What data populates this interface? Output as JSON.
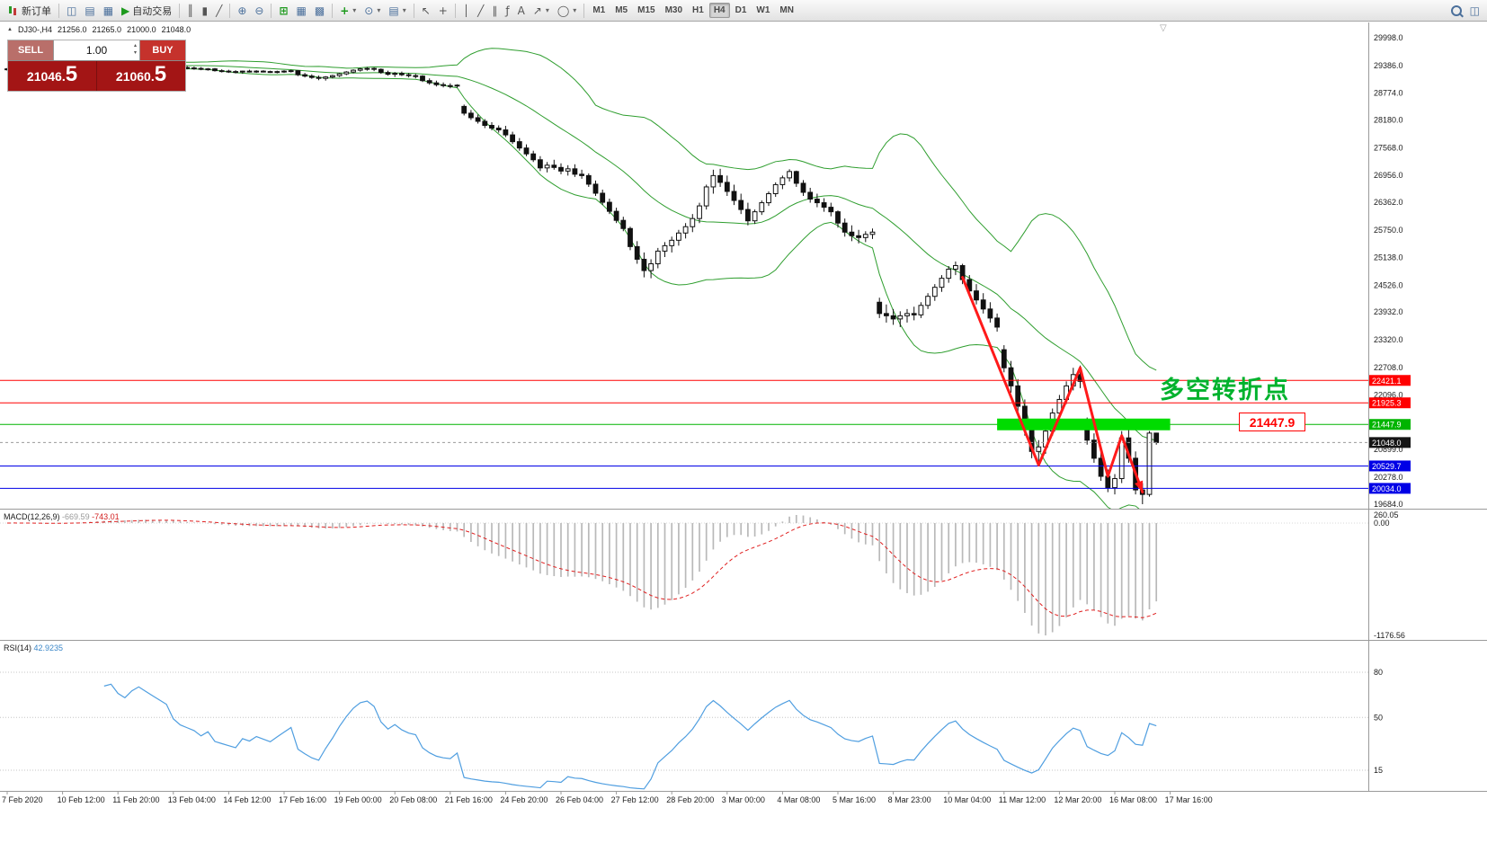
{
  "toolbar": {
    "new_order_label": "新订单",
    "autotrading_label": "自动交易",
    "timeframes": [
      "M1",
      "M5",
      "M15",
      "M30",
      "H1",
      "H4",
      "D1",
      "W1",
      "MN"
    ],
    "active_timeframe": "H4"
  },
  "icons": {
    "marker": "▲",
    "shift_marker": "▽",
    "chart_window": "◫",
    "market_watch": "▤",
    "metaeditor": "▦",
    "play": "▶",
    "chart_bars": "║",
    "chart_candles": "▮",
    "chart_line": "╱",
    "zoom_in": "⊕",
    "zoom_out": "⊖",
    "grid": "⊞",
    "tile_windows": "▦",
    "cascade_windows": "▩",
    "add_indicator": "+",
    "periods": "⊙",
    "templates": "▤",
    "cursor": "↖",
    "crosshair": "+",
    "vertical_line": "│",
    "trendline": "╱",
    "channel": "∥",
    "fibonacci": "ƒ",
    "text_tool": "A",
    "arrows_tool": "↗",
    "shapes_tool": "◯",
    "dropdown": "▾",
    "spin_up": "▴",
    "spin_down": "▾"
  },
  "trade": {
    "sell_label": "SELL",
    "buy_label": "BUY",
    "volume": "1.00",
    "sell_price": "21046.",
    "sell_pip": "5",
    "buy_price": "21060.",
    "buy_pip": "5"
  },
  "chart": {
    "symbol_period": "DJ30-,H4",
    "open": "21256.0",
    "high": "21265.0",
    "low": "21000.0",
    "close": "21048.0",
    "price_labels": [
      "29998.0",
      "29386.0",
      "28774.0",
      "28180.0",
      "27568.0",
      "26956.0",
      "26362.0",
      "25750.0",
      "25138.0",
      "24526.0",
      "23932.0",
      "23320.0",
      "22708.0",
      "22096.0",
      "21484.0",
      "20899.0",
      "20278.0",
      "19684.0"
    ],
    "time_labels": [
      "7 Feb 2020",
      "10 Feb 12:00",
      "11 Feb 20:00",
      "13 Feb 04:00",
      "14 Feb 12:00",
      "17 Feb 16:00",
      "19 Feb 00:00",
      "20 Feb 08:00",
      "21 Feb 16:00",
      "24 Feb 20:00",
      "26 Feb 04:00",
      "27 Feb 12:00",
      "28 Feb 20:00",
      "3 Mar 00:00",
      "4 Mar 08:00",
      "5 Mar 16:00",
      "8 Mar 23:00",
      "10 Mar 04:00",
      "11 Mar 12:00",
      "12 Mar 20:00",
      "16 Mar 08:00",
      "17 Mar 16:00"
    ],
    "levels": [
      {
        "label": "22421.1",
        "value": 22421.1,
        "color": "#ff0000"
      },
      {
        "label": "21925.3",
        "value": 21925.3,
        "color": "#ff0000"
      },
      {
        "label": "21447.9",
        "value": 21447.9,
        "color": "#00b400"
      },
      {
        "label": "20529.7",
        "value": 20529.7,
        "color": "#0000e6"
      },
      {
        "label": "20034.0",
        "value": 20034.0,
        "color": "#0000e6"
      }
    ],
    "current_price": {
      "label": "21048.0",
      "value": 21048.0
    }
  },
  "indicators": {
    "macd": {
      "name": "MACD(12,26,9)",
      "value_main": "-669.59",
      "value_signal": "-743.01",
      "fast": 12,
      "slow": 26,
      "signal": 9,
      "scale_labels": [
        "260.05",
        "0.00",
        "-1176.56"
      ]
    },
    "rsi": {
      "name": "RSI(14)",
      "value": "42.9235",
      "period": 14,
      "levels": [
        "80",
        "50",
        "15"
      ]
    }
  },
  "annotations": {
    "turning_point": {
      "text": "多空转折点",
      "color": "#00b22d"
    },
    "price_callout": {
      "text": "21447.9",
      "color": "#ff0000"
    },
    "zigzag": {
      "color": "#ff1a1a",
      "points": [
        [
          138,
          24700
        ],
        [
          149,
          20550
        ],
        [
          155,
          22700
        ],
        [
          159,
          20300
        ],
        [
          161,
          21200
        ],
        [
          164,
          19950
        ]
      ]
    },
    "support_zone": {
      "price": 21447.9,
      "from_bar": 143,
      "to_bar": 168,
      "color": "#00dc00"
    }
  },
  "chart_data": {
    "type": "candlestick",
    "symbol": "DJ30",
    "timeframe": "H4",
    "price_range": [
      19684.0,
      29998.0
    ],
    "bollinger": {
      "period": 20,
      "deviation": 2,
      "color": "#2f9e2f"
    },
    "candles": [
      [
        29300,
        29330,
        29270,
        29310
      ],
      [
        29310,
        29340,
        29290,
        29320
      ],
      [
        29320,
        29335,
        29280,
        29290
      ],
      [
        29290,
        29320,
        29260,
        29300
      ],
      [
        29300,
        29330,
        29270,
        29280
      ],
      [
        29280,
        29310,
        29250,
        29270
      ],
      [
        29270,
        29300,
        29240,
        29290
      ],
      [
        29290,
        29330,
        29270,
        29320
      ],
      [
        29320,
        29350,
        29300,
        29340
      ],
      [
        29340,
        29370,
        29310,
        29330
      ],
      [
        29330,
        29360,
        29300,
        29350
      ],
      [
        29350,
        29380,
        29320,
        29360
      ],
      [
        29360,
        29400,
        29340,
        29390
      ],
      [
        29390,
        29420,
        29360,
        29400
      ],
      [
        29400,
        29430,
        29380,
        29410
      ],
      [
        29410,
        29440,
        29390,
        29420
      ],
      [
        29420,
        29440,
        29380,
        29400
      ],
      [
        29400,
        29430,
        29370,
        29390
      ],
      [
        29390,
        29430,
        29370,
        29420
      ],
      [
        29420,
        29450,
        29400,
        29440
      ],
      [
        29440,
        29460,
        29410,
        29430
      ],
      [
        29430,
        29450,
        29400,
        29420
      ],
      [
        29420,
        29440,
        29390,
        29410
      ],
      [
        29410,
        29430,
        29380,
        29400
      ],
      [
        29400,
        29420,
        29340,
        29360
      ],
      [
        29360,
        29390,
        29320,
        29340
      ],
      [
        29340,
        29370,
        29300,
        29330
      ],
      [
        29330,
        29360,
        29290,
        29320
      ],
      [
        29320,
        29350,
        29280,
        29300
      ],
      [
        29300,
        29330,
        29270,
        29310
      ],
      [
        29310,
        29330,
        29250,
        29270
      ],
      [
        29270,
        29300,
        29230,
        29260
      ],
      [
        29260,
        29290,
        29220,
        29250
      ],
      [
        29250,
        29280,
        29210,
        29240
      ],
      [
        29240,
        29270,
        29200,
        29260
      ],
      [
        29260,
        29290,
        29230,
        29250
      ],
      [
        29250,
        29280,
        29220,
        29260
      ],
      [
        29260,
        29280,
        29230,
        29250
      ],
      [
        29250,
        29270,
        29220,
        29240
      ],
      [
        29240,
        29270,
        29210,
        29250
      ],
      [
        29250,
        29280,
        29220,
        29260
      ],
      [
        29260,
        29290,
        29230,
        29270
      ],
      [
        29270,
        29280,
        29150,
        29180
      ],
      [
        29180,
        29220,
        29120,
        29150
      ],
      [
        29150,
        29190,
        29090,
        29120
      ],
      [
        29120,
        29160,
        29060,
        29100
      ],
      [
        29100,
        29150,
        29050,
        29130
      ],
      [
        29130,
        29180,
        29100,
        29160
      ],
      [
        29160,
        29220,
        29130,
        29200
      ],
      [
        29200,
        29260,
        29170,
        29240
      ],
      [
        29240,
        29300,
        29210,
        29280
      ],
      [
        29280,
        29330,
        29250,
        29310
      ],
      [
        29310,
        29350,
        29270,
        29320
      ],
      [
        29320,
        29340,
        29260,
        29300
      ],
      [
        29300,
        29320,
        29200,
        29230
      ],
      [
        29230,
        29270,
        29160,
        29190
      ],
      [
        29190,
        29240,
        29130,
        29210
      ],
      [
        29210,
        29250,
        29150,
        29180
      ],
      [
        29180,
        29220,
        29120,
        29160
      ],
      [
        29160,
        29200,
        29100,
        29150
      ],
      [
        29150,
        29170,
        29020,
        29050
      ],
      [
        29050,
        29100,
        28960,
        29000
      ],
      [
        29000,
        29050,
        28920,
        28960
      ],
      [
        28960,
        29010,
        28900,
        28940
      ],
      [
        28940,
        28990,
        28880,
        28930
      ],
      [
        28930,
        28970,
        28890,
        28950
      ],
      [
        28480,
        28520,
        28280,
        28330
      ],
      [
        28330,
        28400,
        28180,
        28230
      ],
      [
        28230,
        28300,
        28100,
        28150
      ],
      [
        28150,
        28200,
        28000,
        28060
      ],
      [
        28060,
        28130,
        27950,
        28000
      ],
      [
        28000,
        28060,
        27900,
        27960
      ],
      [
        27960,
        28050,
        27800,
        27850
      ],
      [
        27850,
        27920,
        27650,
        27700
      ],
      [
        27700,
        27780,
        27500,
        27560
      ],
      [
        27560,
        27640,
        27380,
        27430
      ],
      [
        27430,
        27500,
        27250,
        27300
      ],
      [
        27300,
        27380,
        27050,
        27120
      ],
      [
        27120,
        27250,
        27020,
        27180
      ],
      [
        27180,
        27300,
        27080,
        27130
      ],
      [
        27130,
        27220,
        26980,
        27050
      ],
      [
        27050,
        27180,
        26950,
        27100
      ],
      [
        27100,
        27200,
        26920,
        26980
      ],
      [
        26980,
        27080,
        26880,
        26950
      ],
      [
        26950,
        27000,
        26700,
        26760
      ],
      [
        26760,
        26840,
        26500,
        26560
      ],
      [
        26560,
        26640,
        26300,
        26360
      ],
      [
        26360,
        26440,
        26100,
        26160
      ],
      [
        26160,
        26240,
        25900,
        25960
      ],
      [
        25960,
        26040,
        25720,
        25780
      ],
      [
        25780,
        25820,
        25300,
        25380
      ],
      [
        25380,
        25500,
        25000,
        25100
      ],
      [
        25100,
        25250,
        24700,
        24850
      ],
      [
        24850,
        25100,
        24680,
        25000
      ],
      [
        25000,
        25350,
        24900,
        25280
      ],
      [
        25280,
        25480,
        25150,
        25400
      ],
      [
        25400,
        25600,
        25250,
        25520
      ],
      [
        25520,
        25750,
        25400,
        25680
      ],
      [
        25680,
        25900,
        25560,
        25820
      ],
      [
        25820,
        26100,
        25700,
        26000
      ],
      [
        26000,
        26350,
        25900,
        26280
      ],
      [
        26280,
        26750,
        26200,
        26700
      ],
      [
        26700,
        27080,
        26550,
        26950
      ],
      [
        26950,
        27100,
        26700,
        26800
      ],
      [
        26800,
        26950,
        26500,
        26600
      ],
      [
        26600,
        26750,
        26300,
        26400
      ],
      [
        26400,
        26550,
        26100,
        26200
      ],
      [
        26200,
        26350,
        25850,
        25950
      ],
      [
        25950,
        26200,
        25880,
        26150
      ],
      [
        26150,
        26400,
        26080,
        26350
      ],
      [
        26350,
        26600,
        26280,
        26550
      ],
      [
        26550,
        26800,
        26480,
        26750
      ],
      [
        26750,
        26950,
        26650,
        26900
      ],
      [
        26900,
        27090,
        26820,
        27040
      ],
      [
        27040,
        27060,
        26700,
        26780
      ],
      [
        26780,
        26850,
        26500,
        26580
      ],
      [
        26580,
        26680,
        26350,
        26430
      ],
      [
        26430,
        26550,
        26250,
        26350
      ],
      [
        26350,
        26450,
        26150,
        26250
      ],
      [
        26250,
        26350,
        26050,
        26150
      ],
      [
        26150,
        26180,
        25800,
        25900
      ],
      [
        25900,
        26000,
        25600,
        25700
      ],
      [
        25700,
        25850,
        25500,
        25620
      ],
      [
        25620,
        25750,
        25450,
        25580
      ],
      [
        25580,
        25720,
        25480,
        25650
      ],
      [
        25650,
        25780,
        25550,
        25700
      ],
      [
        24150,
        24250,
        23800,
        23900
      ],
      [
        23900,
        24100,
        23700,
        23850
      ],
      [
        23850,
        24000,
        23650,
        23780
      ],
      [
        23780,
        23950,
        23600,
        23850
      ],
      [
        23850,
        24000,
        23700,
        23900
      ],
      [
        23900,
        24050,
        23750,
        23870
      ],
      [
        23870,
        24150,
        23800,
        24080
      ],
      [
        24080,
        24350,
        24000,
        24280
      ],
      [
        24280,
        24550,
        24180,
        24480
      ],
      [
        24480,
        24750,
        24380,
        24680
      ],
      [
        24680,
        24950,
        24580,
        24880
      ],
      [
        24880,
        25050,
        24750,
        24960
      ],
      [
        24960,
        25000,
        24550,
        24650
      ],
      [
        24650,
        24750,
        24300,
        24400
      ],
      [
        24400,
        24550,
        24100,
        24200
      ],
      [
        24200,
        24350,
        23900,
        24000
      ],
      [
        24000,
        24150,
        23700,
        23800
      ],
      [
        23800,
        23900,
        23500,
        23600
      ],
      [
        23100,
        23200,
        22600,
        22700
      ],
      [
        22700,
        22850,
        22150,
        22300
      ],
      [
        22300,
        22450,
        21700,
        21850
      ],
      [
        21850,
        22000,
        21200,
        21350
      ],
      [
        21350,
        21500,
        20700,
        20850
      ],
      [
        20850,
        21100,
        20550,
        20950
      ],
      [
        20950,
        21400,
        20800,
        21300
      ],
      [
        21300,
        21800,
        21200,
        21700
      ],
      [
        21700,
        22100,
        21600,
        22000
      ],
      [
        22000,
        22400,
        21900,
        22300
      ],
      [
        22300,
        22700,
        22200,
        22550
      ],
      [
        22550,
        22750,
        22250,
        22400
      ],
      [
        21500,
        21600,
        21000,
        21100
      ],
      [
        21100,
        21250,
        20600,
        20700
      ],
      [
        20700,
        20850,
        20200,
        20300
      ],
      [
        20300,
        20450,
        19950,
        20050
      ],
      [
        20050,
        20350,
        19900,
        20250
      ],
      [
        20250,
        21300,
        20150,
        21150
      ],
      [
        21150,
        21350,
        20600,
        20700
      ],
      [
        20700,
        20850,
        19900,
        20000
      ],
      [
        20000,
        20150,
        19684,
        19900
      ],
      [
        19900,
        21300,
        19850,
        21256
      ],
      [
        21256,
        21265,
        21000,
        21048
      ]
    ]
  }
}
